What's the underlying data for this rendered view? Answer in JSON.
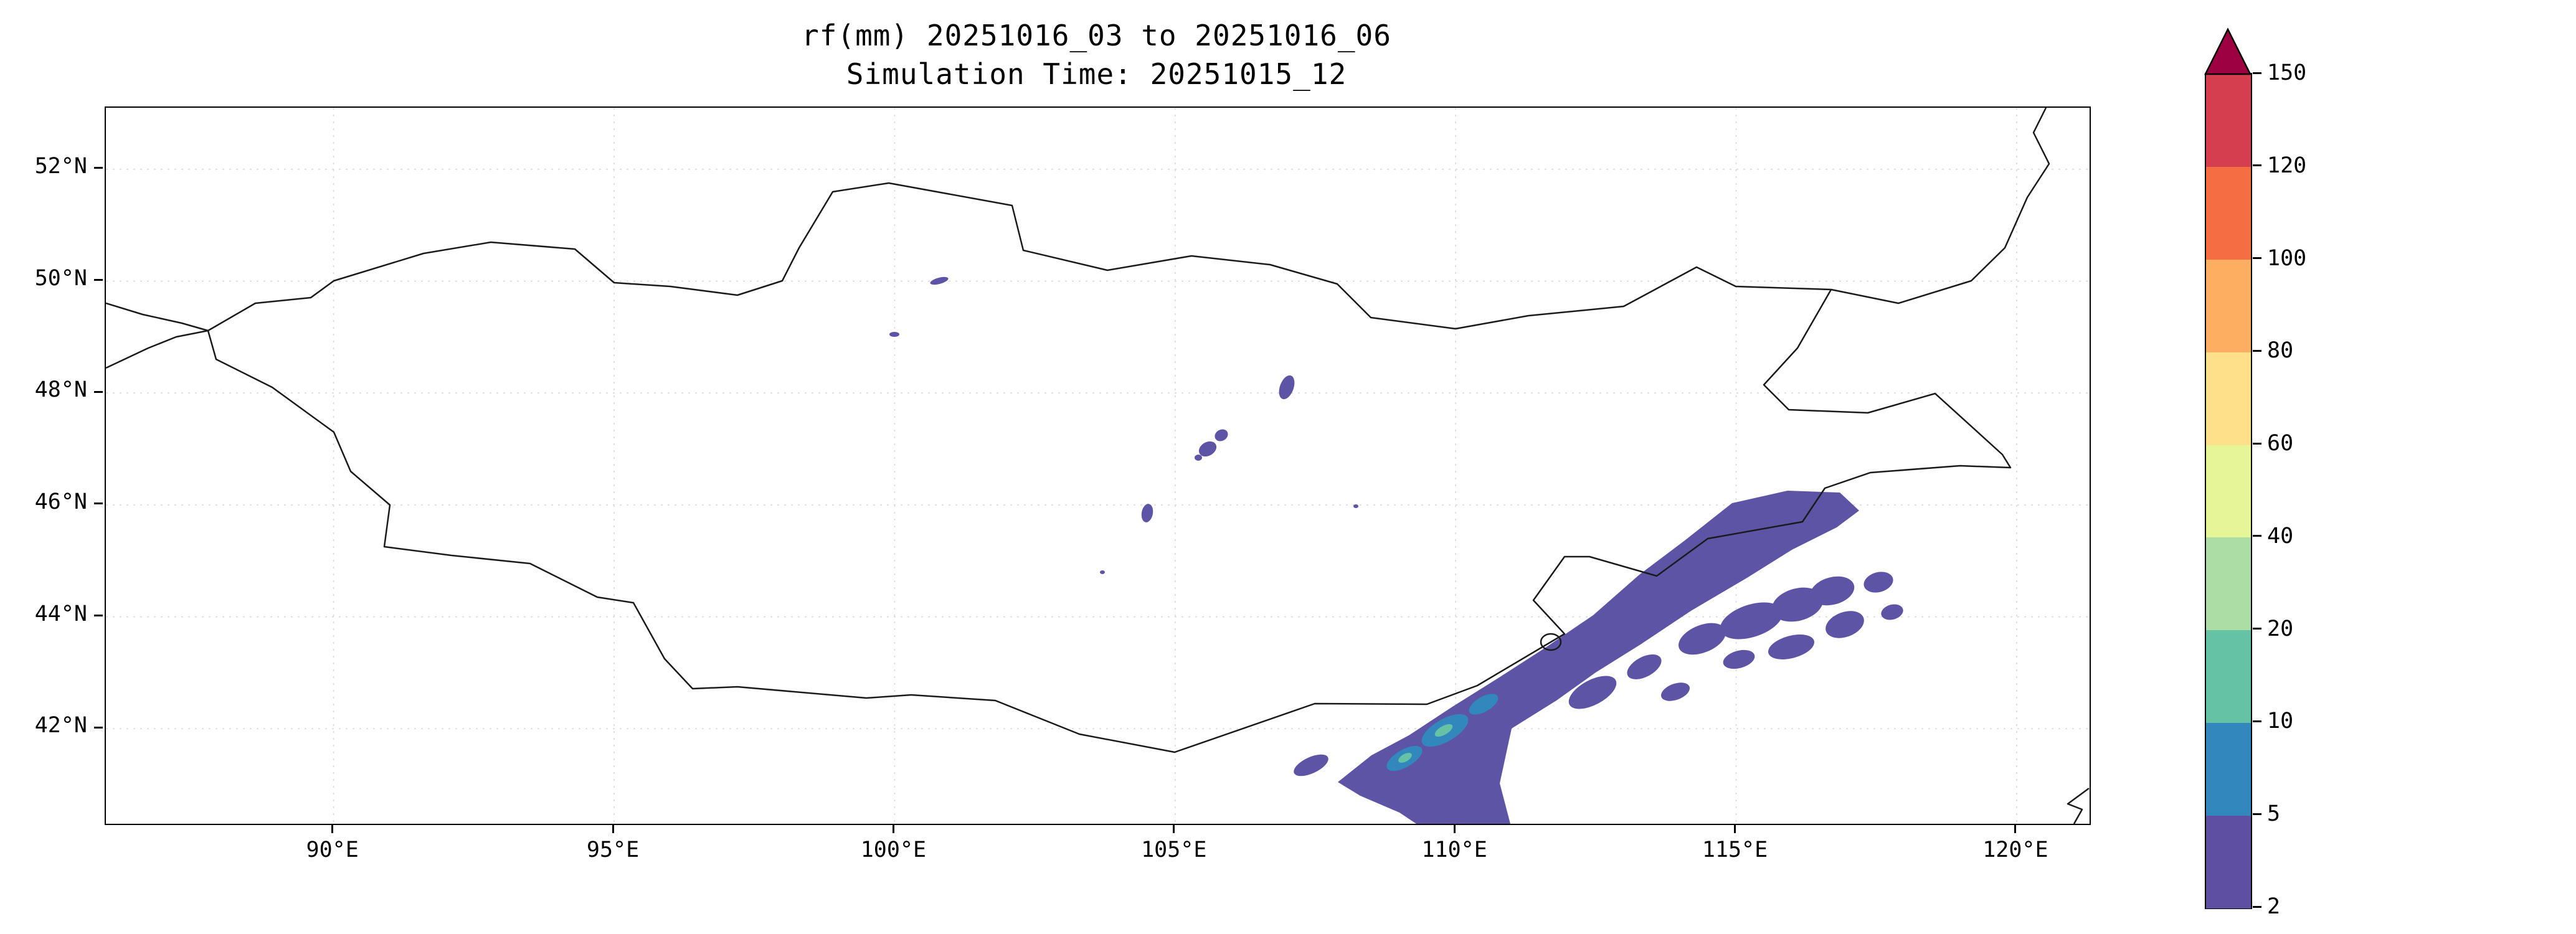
{
  "title": {
    "line1": "rf(mm) 20251016_03 to 20251016_06",
    "line2": "Simulation Time: 20251015_12"
  },
  "axes": {
    "x_ticks": [
      {
        "value": 90,
        "label": "90°E"
      },
      {
        "value": 95,
        "label": "95°E"
      },
      {
        "value": 100,
        "label": "100°E"
      },
      {
        "value": 105,
        "label": "105°E"
      },
      {
        "value": 110,
        "label": "110°E"
      },
      {
        "value": 115,
        "label": "115°E"
      },
      {
        "value": 120,
        "label": "120°E"
      }
    ],
    "y_ticks": [
      {
        "value": 52,
        "label": "52°N"
      },
      {
        "value": 50,
        "label": "50°N"
      },
      {
        "value": 48,
        "label": "48°N"
      },
      {
        "value": 46,
        "label": "46°N"
      },
      {
        "value": 44,
        "label": "44°N"
      },
      {
        "value": 42,
        "label": "42°N"
      }
    ]
  },
  "colorbar": {
    "levels": [
      2,
      5,
      10,
      20,
      40,
      60,
      80,
      100,
      120,
      150
    ],
    "labels_top_to_bottom": [
      "150",
      "120",
      "100",
      "80",
      "60",
      "40",
      "20",
      "10",
      "5",
      "2"
    ],
    "colors_bottom_to_top": [
      "#5e4fa2",
      "#3288bd",
      "#66c2a5",
      "#abdda4",
      "#e6f598",
      "#fee08b",
      "#fdae61",
      "#f46d43",
      "#d53e4f"
    ],
    "over_color": "#9e0142"
  },
  "map": {
    "rain_color": "#5e54a6",
    "heavy_color": "#3288bd",
    "core_color": "#66c2a5",
    "border_color": "#1a1a1a",
    "grid_color": "#d9d9d9",
    "background": "#ffffff"
  },
  "chart_data": {
    "type": "heatmap",
    "title": "rf(mm) 20251016_03 to 20251016_06",
    "subtitle": "Simulation Time: 20251015_12",
    "variable": "rainfall accumulation",
    "units": "mm",
    "valid_period": {
      "start": "20251016_03",
      "end": "20251016_06"
    },
    "simulation_time": "20251015_12",
    "projection": "equirectangular lon/lat over Mongolia and surroundings",
    "extent": {
      "lon_min": 85.94,
      "lon_max": 121.3,
      "lat_min": 40.3,
      "lat_max": 53.1
    },
    "x_ticks_deg_east": [
      90,
      95,
      100,
      105,
      110,
      115,
      120
    ],
    "y_ticks_deg_north": [
      42,
      44,
      46,
      48,
      50,
      52
    ],
    "grid": true,
    "legend_position": "right colorbar, extend max arrow",
    "colorbar_levels_mm": [
      2,
      5,
      10,
      20,
      40,
      60,
      80,
      100,
      120,
      150
    ],
    "colorbar_colors_bottom_to_top": [
      "#5e4fa2",
      "#3288bd",
      "#66c2a5",
      "#abdda4",
      "#e6f598",
      "#fee08b",
      "#fdae61",
      "#f46d43",
      "#d53e4f"
    ],
    "colorbar_over_color": "#9e0142",
    "precipitation_features": [
      {
        "area": "main SW-NE rain band",
        "range_mm": "2-5",
        "from": [
          108.0,
          41.0
        ],
        "to": [
          117.2,
          46.1
        ],
        "note": "continuous band crossing the Mongolia-China border, reaching the bottom edge near 108.5-111°E"
      },
      {
        "area": "embedded heavier cells",
        "range_mm": "10-40",
        "near": [
          [
            108.9,
            41.5
          ],
          [
            109.6,
            42.0
          ],
          [
            110.2,
            42.4
          ]
        ]
      },
      {
        "area": "scattered patches SE of the band",
        "range_mm": "2-5",
        "lon_range": [
          112,
          118
        ],
        "lat_range": [
          42.5,
          45.0
        ]
      },
      {
        "area": "isolated small spots",
        "range_mm": "2-5",
        "near": [
          [
            100.8,
            50.0
          ],
          [
            100.0,
            49.0
          ],
          [
            107.0,
            48.1
          ],
          [
            105.7,
            47.1
          ],
          [
            104.5,
            45.9
          ],
          [
            103.7,
            44.8
          ]
        ]
      }
    ],
    "map_features": [
      "Mongolia national border",
      "Russia-China (Argun) border to the top-right corner",
      "border junction lines at left edge near 87.8°E 49.1°N",
      "small lake/loop on SE border near 111.3°E 43.6°N",
      "short coastline fragment near 121°E 40.4°N"
    ]
  }
}
